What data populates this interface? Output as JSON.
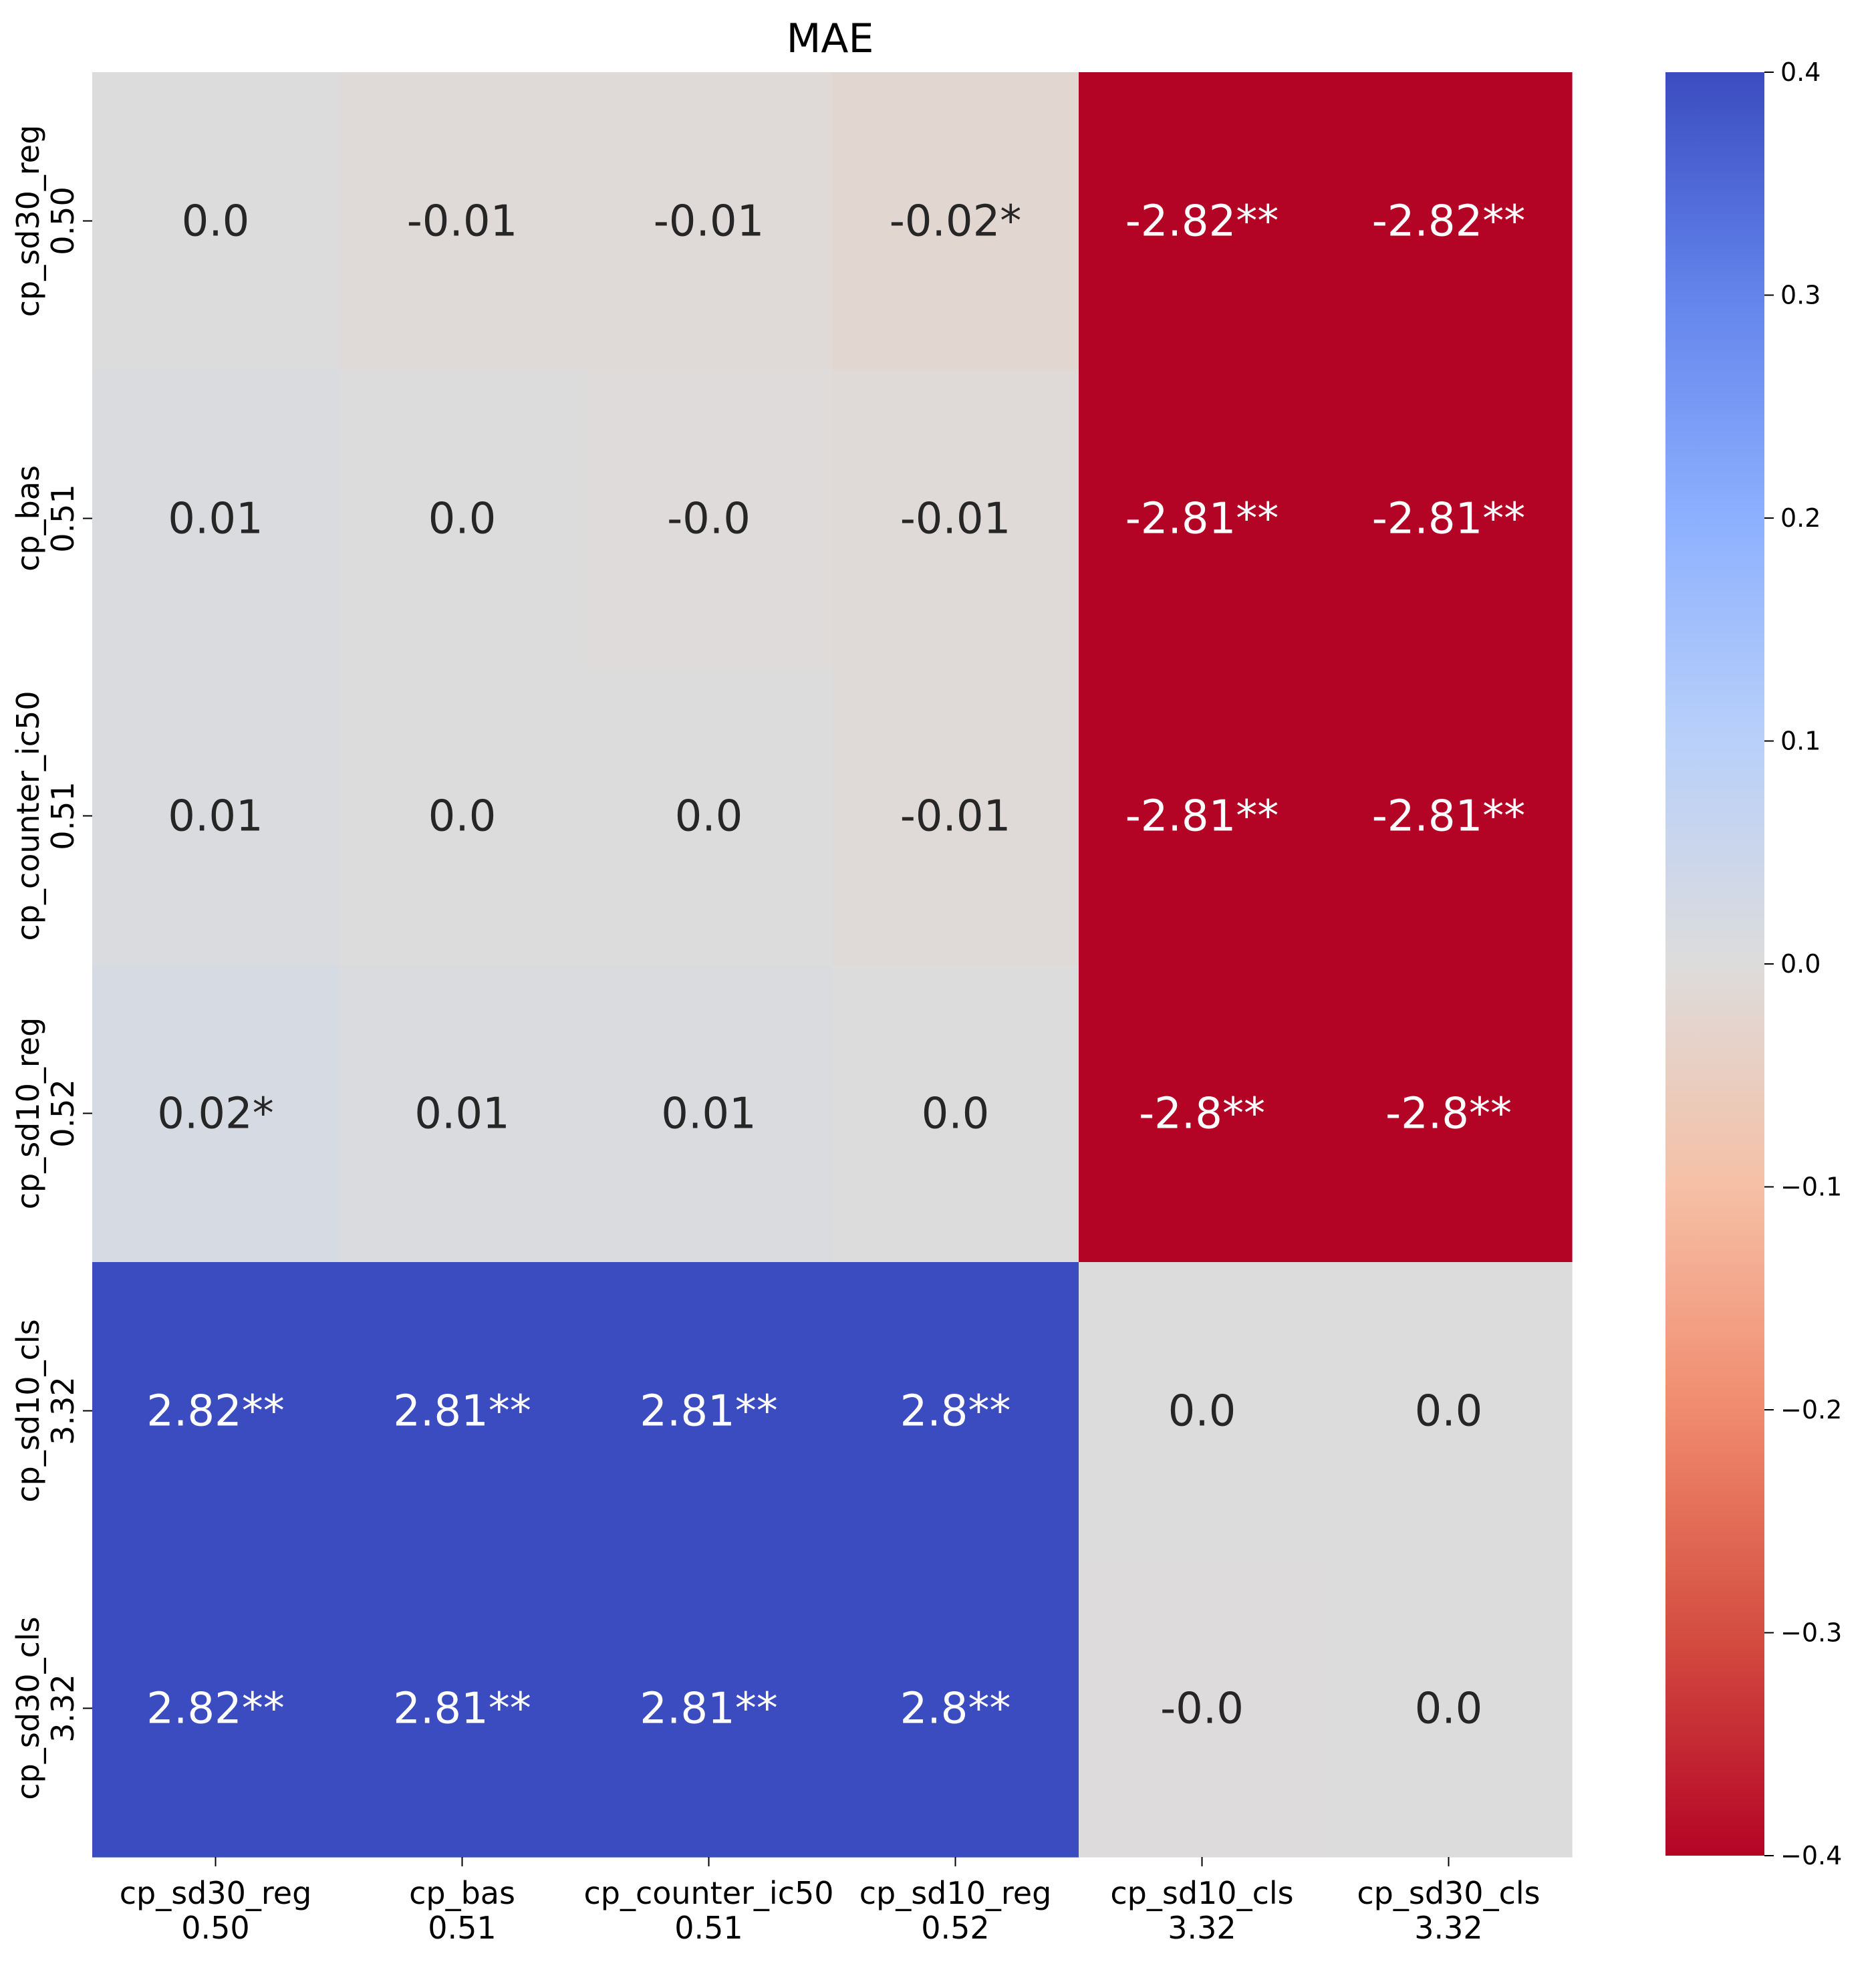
{
  "chart_data": {
    "type": "heatmap",
    "title": "MAE",
    "colormap": "coolwarm_r",
    "color_range": [
      -0.4,
      0.4
    ],
    "colorbar": {
      "ticks": [
        0.4,
        0.3,
        0.2,
        0.1,
        0.0,
        -0.1,
        -0.2,
        -0.3,
        -0.4
      ],
      "tick_labels": [
        "0.4",
        "0.3",
        "0.2",
        "0.1",
        "0.0",
        "−0.1",
        "−0.2",
        "−0.3",
        "−0.4"
      ]
    },
    "columns": [
      {
        "name": "cp_sd30_reg",
        "score": "0.50"
      },
      {
        "name": "cp_bas",
        "score": "0.51"
      },
      {
        "name": "cp_counter_ic50",
        "score": "0.51"
      },
      {
        "name": "cp_sd10_reg",
        "score": "0.52"
      },
      {
        "name": "cp_sd10_cls",
        "score": "3.32"
      },
      {
        "name": "cp_sd30_cls",
        "score": "3.32"
      }
    ],
    "rows": [
      {
        "name": "cp_sd30_reg",
        "score": "0.50"
      },
      {
        "name": "cp_bas",
        "score": "0.51"
      },
      {
        "name": "cp_counter_ic50",
        "score": "0.51"
      },
      {
        "name": "cp_sd10_reg",
        "score": "0.52"
      },
      {
        "name": "cp_sd10_cls",
        "score": "3.32"
      },
      {
        "name": "cp_sd30_cls",
        "score": "3.32"
      }
    ],
    "values": [
      [
        0.0,
        -0.01,
        -0.01,
        -0.02,
        -2.82,
        -2.82
      ],
      [
        0.01,
        0.0,
        -0.003,
        -0.01,
        -2.81,
        -2.81
      ],
      [
        0.01,
        0.0,
        0.0,
        -0.01,
        -2.81,
        -2.81
      ],
      [
        0.02,
        0.01,
        0.01,
        0.0,
        -2.8,
        -2.8
      ],
      [
        2.82,
        2.81,
        2.81,
        2.8,
        0.0,
        0.0
      ],
      [
        2.82,
        2.81,
        2.81,
        2.8,
        -0.002,
        0.0
      ]
    ],
    "annotations": [
      [
        "0.0",
        "-0.01",
        "-0.01",
        "-0.02*",
        "-2.82**",
        "-2.82**"
      ],
      [
        "0.01",
        "0.0",
        "-0.0",
        "-0.01",
        "-2.81**",
        "-2.81**"
      ],
      [
        "0.01",
        "0.0",
        "0.0",
        "-0.01",
        "-2.81**",
        "-2.81**"
      ],
      [
        "0.02*",
        "0.01",
        "0.01",
        "0.0",
        "-2.8**",
        "-2.8**"
      ],
      [
        "2.82**",
        "2.81**",
        "2.81**",
        "2.8**",
        "0.0",
        "0.0"
      ],
      [
        "2.82**",
        "2.81**",
        "2.81**",
        "2.8**",
        "-0.0",
        "0.0"
      ]
    ]
  }
}
